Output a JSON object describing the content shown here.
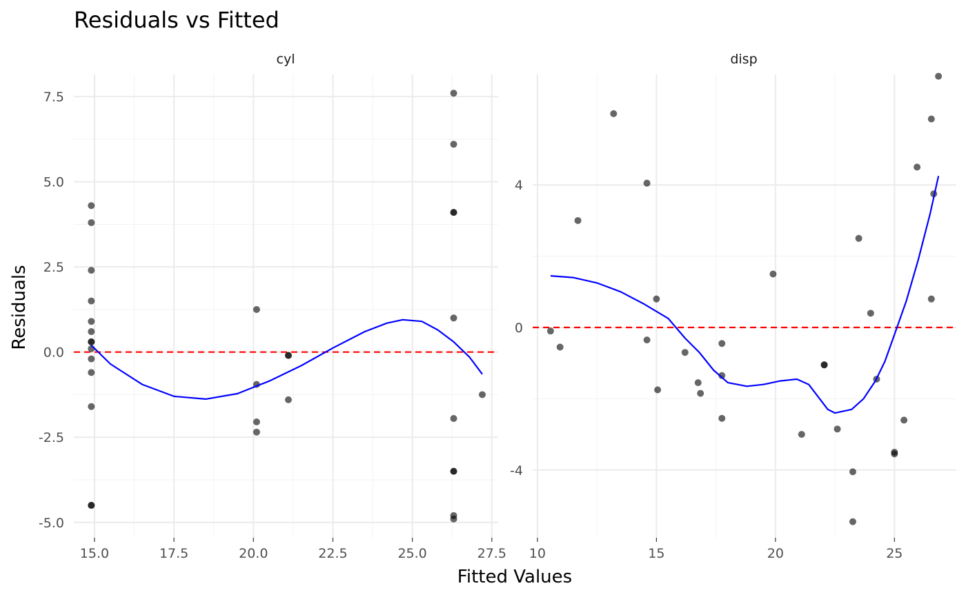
{
  "chart_data": {
    "type": "scatter",
    "title": "Residuals vs Fitted",
    "xlabel": "Fitted Values",
    "ylabel": "Residuals",
    "point_color": "#000000",
    "point_alpha": 0.6,
    "smooth_color": "#0000ff",
    "reference_line": {
      "y": 0,
      "color": "#ff0000",
      "style": "dashed"
    },
    "grid": true,
    "panels": [
      {
        "strip": "cyl",
        "xlim": [
          14.35,
          27.7
        ],
        "ylim": [
          -5.45,
          8.15
        ],
        "x_ticks": [
          15.0,
          17.5,
          20.0,
          22.5,
          25.0,
          27.5
        ],
        "x_tick_labels": [
          "15.0",
          "17.5",
          "20.0",
          "22.5",
          "25.0",
          "27.5"
        ],
        "y_ticks": [
          -5.0,
          -2.5,
          0.0,
          2.5,
          5.0,
          7.5
        ],
        "y_tick_labels": [
          "-5.0",
          "-2.5",
          "0.0",
          "2.5",
          "5.0",
          "7.5"
        ],
        "points": [
          {
            "x": 14.9,
            "y": 4.3
          },
          {
            "x": 14.9,
            "y": 3.8
          },
          {
            "x": 14.9,
            "y": 2.4
          },
          {
            "x": 14.9,
            "y": 1.5
          },
          {
            "x": 14.9,
            "y": 0.9
          },
          {
            "x": 14.9,
            "y": 0.6
          },
          {
            "x": 14.9,
            "y": 0.3
          },
          {
            "x": 14.9,
            "y": 0.3
          },
          {
            "x": 14.9,
            "y": 0.1
          },
          {
            "x": 14.9,
            "y": -0.2
          },
          {
            "x": 14.9,
            "y": -0.6
          },
          {
            "x": 14.9,
            "y": -1.6
          },
          {
            "x": 14.9,
            "y": -4.5
          },
          {
            "x": 14.9,
            "y": -4.5
          },
          {
            "x": 20.1,
            "y": 1.25
          },
          {
            "x": 20.1,
            "y": -0.95
          },
          {
            "x": 20.1,
            "y": -2.05
          },
          {
            "x": 20.1,
            "y": -2.35
          },
          {
            "x": 21.1,
            "y": -0.1
          },
          {
            "x": 21.1,
            "y": -0.1
          },
          {
            "x": 21.1,
            "y": -1.4
          },
          {
            "x": 26.3,
            "y": 7.6
          },
          {
            "x": 26.3,
            "y": 6.1
          },
          {
            "x": 26.3,
            "y": 4.1
          },
          {
            "x": 26.3,
            "y": 4.1
          },
          {
            "x": 26.3,
            "y": 1.0
          },
          {
            "x": 26.3,
            "y": -1.95
          },
          {
            "x": 26.3,
            "y": -3.5
          },
          {
            "x": 26.3,
            "y": -3.5
          },
          {
            "x": 26.3,
            "y": -4.8
          },
          {
            "x": 26.3,
            "y": -4.9
          },
          {
            "x": 27.2,
            "y": -1.25
          }
        ],
        "smooth": [
          {
            "x": 14.9,
            "y": 0.2
          },
          {
            "x": 15.5,
            "y": -0.35
          },
          {
            "x": 16.5,
            "y": -0.95
          },
          {
            "x": 17.5,
            "y": -1.3
          },
          {
            "x": 18.5,
            "y": -1.38
          },
          {
            "x": 19.5,
            "y": -1.22
          },
          {
            "x": 20.5,
            "y": -0.85
          },
          {
            "x": 21.5,
            "y": -0.4
          },
          {
            "x": 22.5,
            "y": 0.12
          },
          {
            "x": 23.5,
            "y": 0.6
          },
          {
            "x": 24.2,
            "y": 0.85
          },
          {
            "x": 24.7,
            "y": 0.95
          },
          {
            "x": 25.3,
            "y": 0.9
          },
          {
            "x": 25.8,
            "y": 0.65
          },
          {
            "x": 26.3,
            "y": 0.3
          },
          {
            "x": 26.8,
            "y": -0.15
          },
          {
            "x": 27.2,
            "y": -0.65
          }
        ]
      },
      {
        "strip": "disp",
        "xlim": [
          9.8,
          27.6
        ],
        "ylim": [
          -5.9,
          7.1
        ],
        "x_ticks": [
          10,
          15,
          20,
          25
        ],
        "x_tick_labels": [
          "10",
          "15",
          "20",
          "25"
        ],
        "y_ticks": [
          -4,
          0,
          4
        ],
        "y_tick_labels": [
          "-4",
          "0",
          "4"
        ],
        "points": [
          {
            "x": 10.55,
            "y": -0.1
          },
          {
            "x": 10.95,
            "y": -0.55
          },
          {
            "x": 11.7,
            "y": 3.0
          },
          {
            "x": 13.2,
            "y": 6.0
          },
          {
            "x": 14.6,
            "y": 4.05
          },
          {
            "x": 14.6,
            "y": -0.35
          },
          {
            "x": 15.0,
            "y": 0.8
          },
          {
            "x": 15.05,
            "y": -1.75
          },
          {
            "x": 16.2,
            "y": -0.7
          },
          {
            "x": 16.75,
            "y": -1.55
          },
          {
            "x": 16.85,
            "y": -1.85
          },
          {
            "x": 17.75,
            "y": -0.45
          },
          {
            "x": 17.75,
            "y": -1.35
          },
          {
            "x": 17.75,
            "y": -2.55
          },
          {
            "x": 19.9,
            "y": 1.5
          },
          {
            "x": 21.1,
            "y": -3.0
          },
          {
            "x": 22.05,
            "y": -1.05
          },
          {
            "x": 22.05,
            "y": -1.05
          },
          {
            "x": 22.6,
            "y": -2.85
          },
          {
            "x": 23.25,
            "y": -4.05
          },
          {
            "x": 23.25,
            "y": -5.45
          },
          {
            "x": 23.5,
            "y": 2.5
          },
          {
            "x": 24.0,
            "y": 0.4
          },
          {
            "x": 24.25,
            "y": -1.45
          },
          {
            "x": 25.0,
            "y": -3.5
          },
          {
            "x": 25.0,
            "y": -3.55
          },
          {
            "x": 25.4,
            "y": -2.6
          },
          {
            "x": 25.95,
            "y": 4.5
          },
          {
            "x": 26.55,
            "y": 0.8
          },
          {
            "x": 26.55,
            "y": 5.85
          },
          {
            "x": 26.65,
            "y": 3.75
          },
          {
            "x": 26.85,
            "y": 7.05
          }
        ],
        "smooth": [
          {
            "x": 10.55,
            "y": 1.45
          },
          {
            "x": 11.5,
            "y": 1.4
          },
          {
            "x": 12.5,
            "y": 1.25
          },
          {
            "x": 13.5,
            "y": 1.0
          },
          {
            "x": 14.5,
            "y": 0.65
          },
          {
            "x": 15.5,
            "y": 0.25
          },
          {
            "x": 16.2,
            "y": -0.3
          },
          {
            "x": 16.8,
            "y": -0.7
          },
          {
            "x": 17.4,
            "y": -1.2
          },
          {
            "x": 18.0,
            "y": -1.55
          },
          {
            "x": 18.8,
            "y": -1.65
          },
          {
            "x": 19.5,
            "y": -1.6
          },
          {
            "x": 20.2,
            "y": -1.5
          },
          {
            "x": 20.9,
            "y": -1.45
          },
          {
            "x": 21.4,
            "y": -1.6
          },
          {
            "x": 21.8,
            "y": -1.95
          },
          {
            "x": 22.2,
            "y": -2.3
          },
          {
            "x": 22.5,
            "y": -2.4
          },
          {
            "x": 23.2,
            "y": -2.3
          },
          {
            "x": 23.7,
            "y": -2.0
          },
          {
            "x": 24.2,
            "y": -1.5
          },
          {
            "x": 24.6,
            "y": -0.95
          },
          {
            "x": 25.0,
            "y": -0.2
          },
          {
            "x": 25.5,
            "y": 0.75
          },
          {
            "x": 26.0,
            "y": 1.9
          },
          {
            "x": 26.5,
            "y": 3.2
          },
          {
            "x": 26.85,
            "y": 4.25
          }
        ]
      }
    ]
  }
}
